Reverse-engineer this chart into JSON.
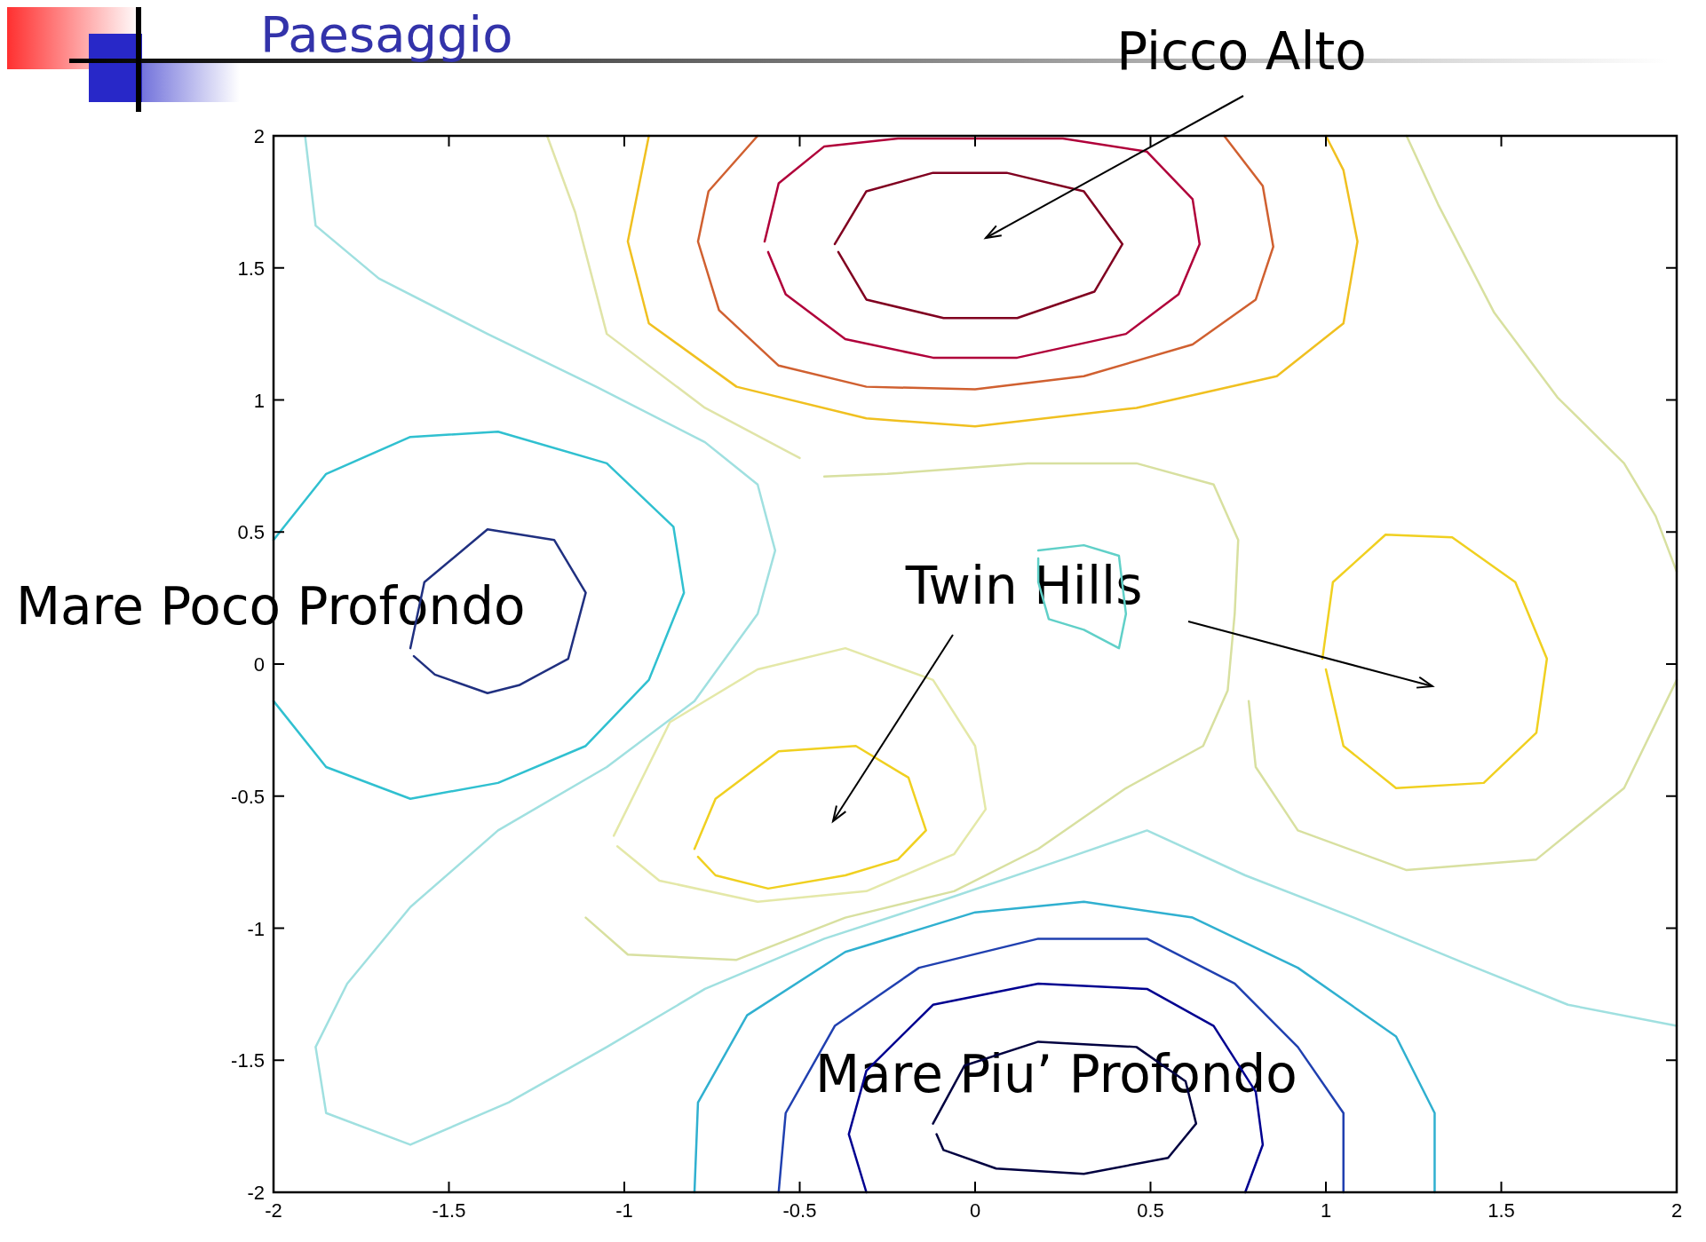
{
  "chart_data": {
    "type": "line",
    "title": "Paesaggio",
    "xlim": [
      -2,
      2
    ],
    "ylim": [
      -2,
      2
    ],
    "xticks": [
      -2,
      -1.5,
      -1,
      -0.5,
      0,
      0.5,
      1,
      1.5,
      2
    ],
    "yticks": [
      -2,
      -1.5,
      -1,
      -0.5,
      0,
      0.5,
      1,
      1.5,
      2
    ],
    "annotations": [
      "Picco Alto",
      "Twin Hills",
      "Mare Poco Profondo",
      "Mare Piu’ Profondo"
    ],
    "series": [
      {
        "color": "#800020",
        "x": [
          -0.4,
          -0.31,
          -0.12,
          0.09,
          0.31,
          0.42,
          0.34,
          0.12,
          -0.09,
          -0.31,
          -0.39
        ],
        "values": [
          1.59,
          1.79,
          1.86,
          1.86,
          1.79,
          1.59,
          1.41,
          1.31,
          1.31,
          1.38,
          1.56
        ]
      },
      {
        "color": "#b0003a",
        "x": [
          -0.6,
          -0.56,
          -0.43,
          -0.22,
          0.25,
          0.49,
          0.62,
          0.64,
          0.58,
          0.43,
          0.12,
          -0.12,
          -0.37,
          -0.54,
          -0.59
        ],
        "values": [
          1.6,
          1.82,
          1.96,
          1.99,
          1.99,
          1.94,
          1.76,
          1.59,
          1.4,
          1.25,
          1.16,
          1.16,
          1.23,
          1.4,
          1.56
        ]
      },
      {
        "color": "#d06030",
        "x": [
          -0.62,
          -0.76,
          -0.79,
          -0.73,
          -0.56,
          -0.31,
          0,
          0.31,
          0.62,
          0.8,
          0.85,
          0.82,
          0.71
        ],
        "values": [
          2,
          1.79,
          1.6,
          1.34,
          1.13,
          1.05,
          1.04,
          1.09,
          1.21,
          1.38,
          1.58,
          1.81,
          2
        ]
      },
      {
        "color": "#f0c020",
        "x": [
          -0.93,
          -0.99,
          -0.93,
          -0.68,
          -0.31,
          0,
          0.46,
          0.86,
          1.05,
          1.09,
          1.05,
          1.0
        ],
        "values": [
          2,
          1.6,
          1.29,
          1.05,
          0.93,
          0.9,
          0.97,
          1.09,
          1.29,
          1.6,
          1.87,
          2
        ]
      },
      {
        "color": "#e0e4a8",
        "x": [
          -1.22,
          -1.14,
          -1.05,
          -0.77,
          -0.5
        ],
        "values": [
          2,
          1.71,
          1.25,
          0.97,
          0.78
        ]
      },
      {
        "color": "#d8e0a0",
        "x": [
          1.23,
          1.32,
          1.48,
          1.66,
          1.85,
          1.94,
          2
        ],
        "values": [
          2,
          1.74,
          1.33,
          1.01,
          0.76,
          0.56,
          0.35
        ]
      },
      {
        "color": "#d8e0a0",
        "x": [
          -1.11,
          -0.99,
          -0.68,
          -0.37,
          -0.06,
          0.18,
          0.43,
          0.65,
          0.72,
          0.74,
          0.75,
          0.68,
          0.46,
          0.15,
          -0.25,
          -0.43
        ],
        "values": [
          -0.96,
          -1.1,
          -1.12,
          -0.96,
          -0.86,
          -0.7,
          -0.47,
          -0.31,
          -0.1,
          0.19,
          0.47,
          0.68,
          0.76,
          0.76,
          0.72,
          0.71
        ]
      },
      {
        "color": "#d8e0a0",
        "x": [
          2,
          1.85,
          1.6,
          1.23,
          0.92,
          0.8,
          0.78
        ],
        "values": [
          -0.06,
          -0.47,
          -0.74,
          -0.78,
          -0.63,
          -0.39,
          -0.14
        ]
      },
      {
        "color": "#f0d020",
        "x": [
          -0.8,
          -0.74,
          -0.56,
          -0.34,
          -0.19,
          -0.14,
          -0.22,
          -0.37,
          -0.59,
          -0.74,
          -0.79
        ],
        "values": [
          -0.7,
          -0.51,
          -0.33,
          -0.31,
          -0.43,
          -0.63,
          -0.74,
          -0.8,
          -0.85,
          -0.8,
          -0.73
        ]
      },
      {
        "color": "#e4e8a8",
        "x": [
          -1.03,
          -0.87,
          -0.62,
          -0.37,
          -0.12,
          0,
          0.03,
          -0.06,
          -0.31,
          -0.62,
          -0.9,
          -1.02
        ],
        "values": [
          -0.65,
          -0.22,
          -0.02,
          0.06,
          -0.06,
          -0.31,
          -0.55,
          -0.72,
          -0.86,
          -0.9,
          -0.82,
          -0.69
        ]
      },
      {
        "color": "#f0d020",
        "x": [
          0.99,
          1.02,
          1.17,
          1.36,
          1.54,
          1.63,
          1.6,
          1.45,
          1.2,
          1.05,
          1.0
        ],
        "values": [
          0.02,
          0.31,
          0.49,
          0.48,
          0.31,
          0.02,
          -0.26,
          -0.45,
          -0.47,
          -0.31,
          -0.02
        ]
      },
      {
        "color": "#60d0c8",
        "x": [
          0.18,
          0.31,
          0.41,
          0.43,
          0.41,
          0.31,
          0.21,
          0.18,
          0.18
        ],
        "values": [
          0.43,
          0.45,
          0.41,
          0.19,
          0.06,
          0.13,
          0.17,
          0.31,
          0.4
        ]
      },
      {
        "color": "#203080",
        "x": [
          -1.61,
          -1.57,
          -1.39,
          -1.2,
          -1.11,
          -1.16,
          -1.3,
          -1.39,
          -1.54,
          -1.6
        ],
        "values": [
          0.06,
          0.31,
          0.51,
          0.47,
          0.27,
          0.02,
          -0.08,
          -0.11,
          -0.04,
          0.03
        ]
      },
      {
        "color": "#30c0d0",
        "x": [
          -2,
          -1.85,
          -1.61,
          -1.36,
          -1.05,
          -0.86,
          -0.83,
          -0.93,
          -1.11,
          -1.36,
          -1.61,
          -1.85,
          -2
        ],
        "values": [
          0.47,
          0.72,
          0.86,
          0.88,
          0.76,
          0.52,
          0.27,
          -0.06,
          -0.31,
          -0.45,
          -0.51,
          -0.39,
          -0.14
        ]
      },
      {
        "color": "#a0e0e0",
        "x": [
          -1.91,
          -1.88,
          -1.7,
          -1.39,
          -1.08,
          -0.77,
          -0.62,
          -0.57,
          -0.62,
          -0.8,
          -1.05,
          -1.36,
          -1.61,
          -1.79,
          -1.88,
          -1.85,
          -1.61,
          -1.33,
          -1.05,
          -0.77,
          -0.43,
          -0.06,
          0.25,
          0.49,
          0.77,
          1.08,
          1.39,
          1.69,
          2
        ],
        "values": [
          2,
          1.66,
          1.46,
          1.25,
          1.05,
          0.84,
          0.68,
          0.43,
          0.19,
          -0.14,
          -0.39,
          -0.63,
          -0.92,
          -1.21,
          -1.45,
          -1.7,
          -1.82,
          -1.66,
          -1.45,
          -1.23,
          -1.04,
          -0.88,
          -0.74,
          -0.63,
          -0.8,
          -0.96,
          -1.13,
          -1.29,
          -1.37
        ]
      },
      {
        "color": "#30b0d0",
        "x": [
          -0.8,
          -0.79,
          -0.65,
          -0.37,
          0,
          0.31,
          0.62,
          0.92,
          1.2,
          1.31,
          1.31
        ],
        "values": [
          -2,
          -1.66,
          -1.33,
          -1.09,
          -0.94,
          -0.9,
          -0.96,
          -1.15,
          -1.41,
          -1.7,
          -2
        ]
      },
      {
        "color": "#2040b0",
        "x": [
          -0.56,
          -0.54,
          -0.4,
          -0.16,
          0.18,
          0.49,
          0.74,
          0.92,
          1.05,
          1.05
        ],
        "values": [
          -2,
          -1.7,
          -1.37,
          -1.15,
          -1.04,
          -1.04,
          -1.21,
          -1.45,
          -1.7,
          -2
        ]
      },
      {
        "color": "#000090",
        "x": [
          -0.31,
          -0.36,
          -0.31,
          -0.12,
          0.18,
          0.49,
          0.68,
          0.8,
          0.82,
          0.77
        ],
        "values": [
          -2,
          -1.78,
          -1.54,
          -1.29,
          -1.21,
          -1.23,
          -1.37,
          -1.62,
          -1.82,
          -2
        ]
      },
      {
        "color": "#000040",
        "x": [
          -0.12,
          -0.03,
          0.18,
          0.46,
          0.6,
          0.63,
          0.55,
          0.31,
          0.06,
          -0.09,
          -0.11
        ],
        "values": [
          -1.74,
          -1.52,
          -1.43,
          -1.45,
          -1.58,
          -1.74,
          -1.87,
          -1.93,
          -1.91,
          -1.84,
          -1.78
        ]
      }
    ]
  }
}
